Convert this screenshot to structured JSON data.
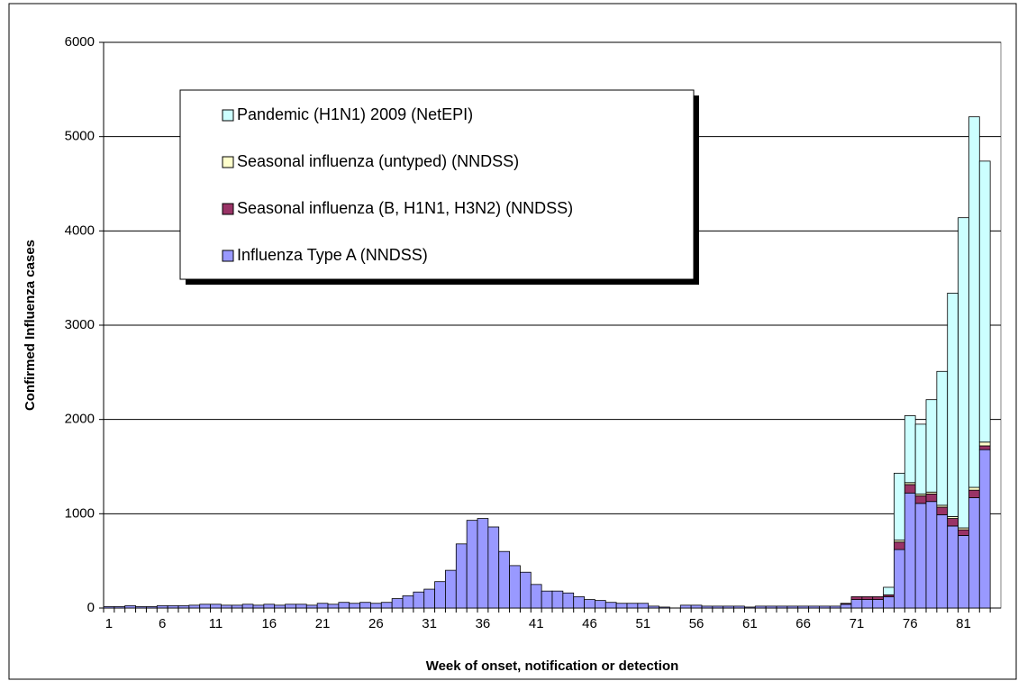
{
  "chart_data": {
    "type": "stacked-bar",
    "x_label": "Week of onset, notification or detection",
    "y_label": "Confirmed Influenza cases",
    "categories": [
      "1",
      null,
      null,
      null,
      null,
      "6",
      null,
      null,
      null,
      null,
      "11",
      null,
      null,
      null,
      null,
      "16",
      null,
      null,
      null,
      null,
      "21",
      null,
      null,
      null,
      null,
      "26",
      null,
      null,
      null,
      null,
      "31",
      null,
      null,
      null,
      null,
      "36",
      null,
      null,
      null,
      null,
      "41",
      null,
      null,
      null,
      null,
      "46",
      null,
      null,
      null,
      null,
      "51",
      null,
      null,
      null,
      null,
      "56",
      null,
      null,
      null,
      null,
      "61",
      null,
      null,
      null,
      null,
      "66",
      null,
      null,
      null,
      null,
      "71",
      null,
      null,
      null,
      null,
      "76",
      null,
      null,
      null,
      null,
      "81",
      null,
      null,
      null
    ],
    "series": [
      {
        "name": "Influenza Type A (NNDSS)",
        "color": "#9999ff",
        "values": [
          15,
          15,
          25,
          15,
          15,
          25,
          25,
          25,
          30,
          40,
          40,
          30,
          30,
          40,
          30,
          40,
          30,
          40,
          40,
          30,
          50,
          40,
          60,
          50,
          60,
          50,
          60,
          100,
          130,
          170,
          200,
          280,
          400,
          680,
          930,
          950,
          860,
          600,
          450,
          380,
          250,
          180,
          180,
          160,
          120,
          90,
          80,
          60,
          50,
          50,
          50,
          20,
          10,
          0,
          30,
          30,
          20,
          20,
          20,
          20,
          10,
          20,
          20,
          20,
          20,
          20,
          20,
          20,
          20,
          40,
          90,
          90,
          90,
          120,
          620,
          1220,
          1110,
          1130,
          990,
          870,
          770,
          1170,
          1680,
          0
        ]
      },
      {
        "name": "Seasonal influenza (B, H1N1, H3N2) (NNDSS)",
        "color": "#993366",
        "values": [
          0,
          0,
          0,
          0,
          0,
          0,
          0,
          0,
          0,
          0,
          0,
          0,
          0,
          0,
          0,
          0,
          0,
          0,
          0,
          0,
          0,
          0,
          0,
          0,
          0,
          0,
          0,
          0,
          0,
          0,
          0,
          0,
          0,
          0,
          0,
          0,
          0,
          0,
          0,
          0,
          0,
          0,
          0,
          0,
          0,
          0,
          0,
          0,
          0,
          0,
          0,
          0,
          0,
          0,
          0,
          0,
          0,
          0,
          0,
          0,
          0,
          0,
          0,
          0,
          0,
          0,
          0,
          0,
          0,
          10,
          30,
          30,
          30,
          20,
          80,
          90,
          80,
          80,
          80,
          80,
          60,
          80,
          40,
          0
        ]
      },
      {
        "name": "Seasonal influenza (untyped) (NNDSS)",
        "color": "#ffffcc",
        "values": [
          0,
          0,
          0,
          0,
          0,
          0,
          0,
          0,
          0,
          0,
          0,
          0,
          0,
          0,
          0,
          0,
          0,
          0,
          0,
          0,
          0,
          0,
          0,
          0,
          0,
          0,
          0,
          0,
          0,
          0,
          0,
          0,
          0,
          0,
          0,
          0,
          0,
          0,
          0,
          0,
          0,
          0,
          0,
          0,
          0,
          0,
          0,
          0,
          0,
          0,
          0,
          0,
          0,
          0,
          0,
          0,
          0,
          0,
          0,
          0,
          0,
          0,
          0,
          0,
          0,
          0,
          0,
          0,
          0,
          0,
          0,
          0,
          0,
          0,
          20,
          20,
          20,
          20,
          20,
          20,
          20,
          30,
          40,
          0
        ]
      },
      {
        "name": "Pandemic (H1N1) 2009 (NetEPI)",
        "color": "#ccffff",
        "values": [
          0,
          0,
          0,
          0,
          0,
          0,
          0,
          0,
          0,
          0,
          0,
          0,
          0,
          0,
          0,
          0,
          0,
          0,
          0,
          0,
          0,
          0,
          0,
          0,
          0,
          0,
          0,
          0,
          0,
          0,
          0,
          0,
          0,
          0,
          0,
          0,
          0,
          0,
          0,
          0,
          0,
          0,
          0,
          0,
          0,
          0,
          0,
          0,
          0,
          0,
          0,
          0,
          0,
          0,
          0,
          0,
          0,
          0,
          0,
          0,
          0,
          0,
          0,
          0,
          0,
          0,
          0,
          0,
          0,
          0,
          0,
          0,
          0,
          80,
          710,
          710,
          740,
          980,
          1420,
          2370,
          3290,
          3930,
          2980,
          0
        ]
      }
    ],
    "ylim": [
      0,
      6000
    ],
    "yticks": [
      0,
      1000,
      2000,
      3000,
      4000,
      5000,
      6000
    ],
    "grid": true
  }
}
